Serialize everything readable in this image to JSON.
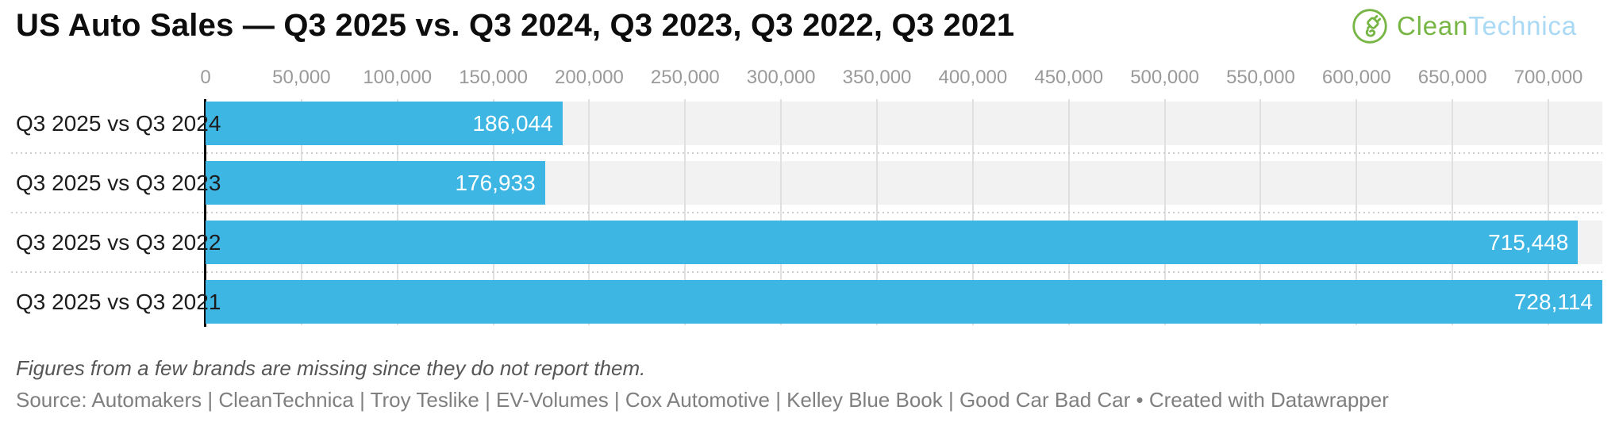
{
  "header": {
    "title": "US Auto Sales — Q3 2025 vs. Q3 2024, Q3 2023, Q3 2022, Q3 2021",
    "logo": {
      "icon": "plug-in-circle-icon",
      "part1": "Clean",
      "part2": "Technica",
      "green": "#77b544",
      "light_blue": "#a9d9f4"
    }
  },
  "chart_data": {
    "type": "bar",
    "orientation": "horizontal",
    "title": "US Auto Sales — Q3 2025 vs. Q3 2024, Q3 2023, Q3 2022, Q3 2021",
    "categories": [
      "Q3 2025 vs Q3 2024",
      "Q3 2025 vs Q3 2023",
      "Q3 2025 vs Q3 2022",
      "Q3 2025 vs Q3 2021"
    ],
    "values": [
      186044,
      176933,
      715448,
      728114
    ],
    "value_labels": [
      "186,044",
      "176,933",
      "715,448",
      "728,114"
    ],
    "x_axis": {
      "min": 0,
      "tick_step": 50000,
      "tick_values": [
        0,
        50000,
        100000,
        150000,
        200000,
        250000,
        300000,
        350000,
        400000,
        450000,
        500000,
        550000,
        600000,
        650000,
        700000
      ],
      "tick_labels": [
        "0",
        "50,000",
        "100,000",
        "150,000",
        "200,000",
        "250,000",
        "300,000",
        "350,000",
        "400,000",
        "450,000",
        "500,000",
        "550,000",
        "600,000",
        "650,000",
        "700,000"
      ],
      "plot_max": 728114
    },
    "grid": true,
    "legend": "none",
    "colors": {
      "bar": "#3eb6e4",
      "row_band": "#f2f2f2",
      "gridline": "#e0e0e0",
      "value_label": "#ffffff",
      "tick_label": "#9a9a9a"
    }
  },
  "footer": {
    "note": "Figures from a few brands are missing since they do not report them.",
    "source": "Source: Automakers | CleanTechnica | Troy Teslike | EV-Volumes | Cox Automotive | Kelley Blue Book | Good Car Bad Car • Created with Datawrapper"
  }
}
